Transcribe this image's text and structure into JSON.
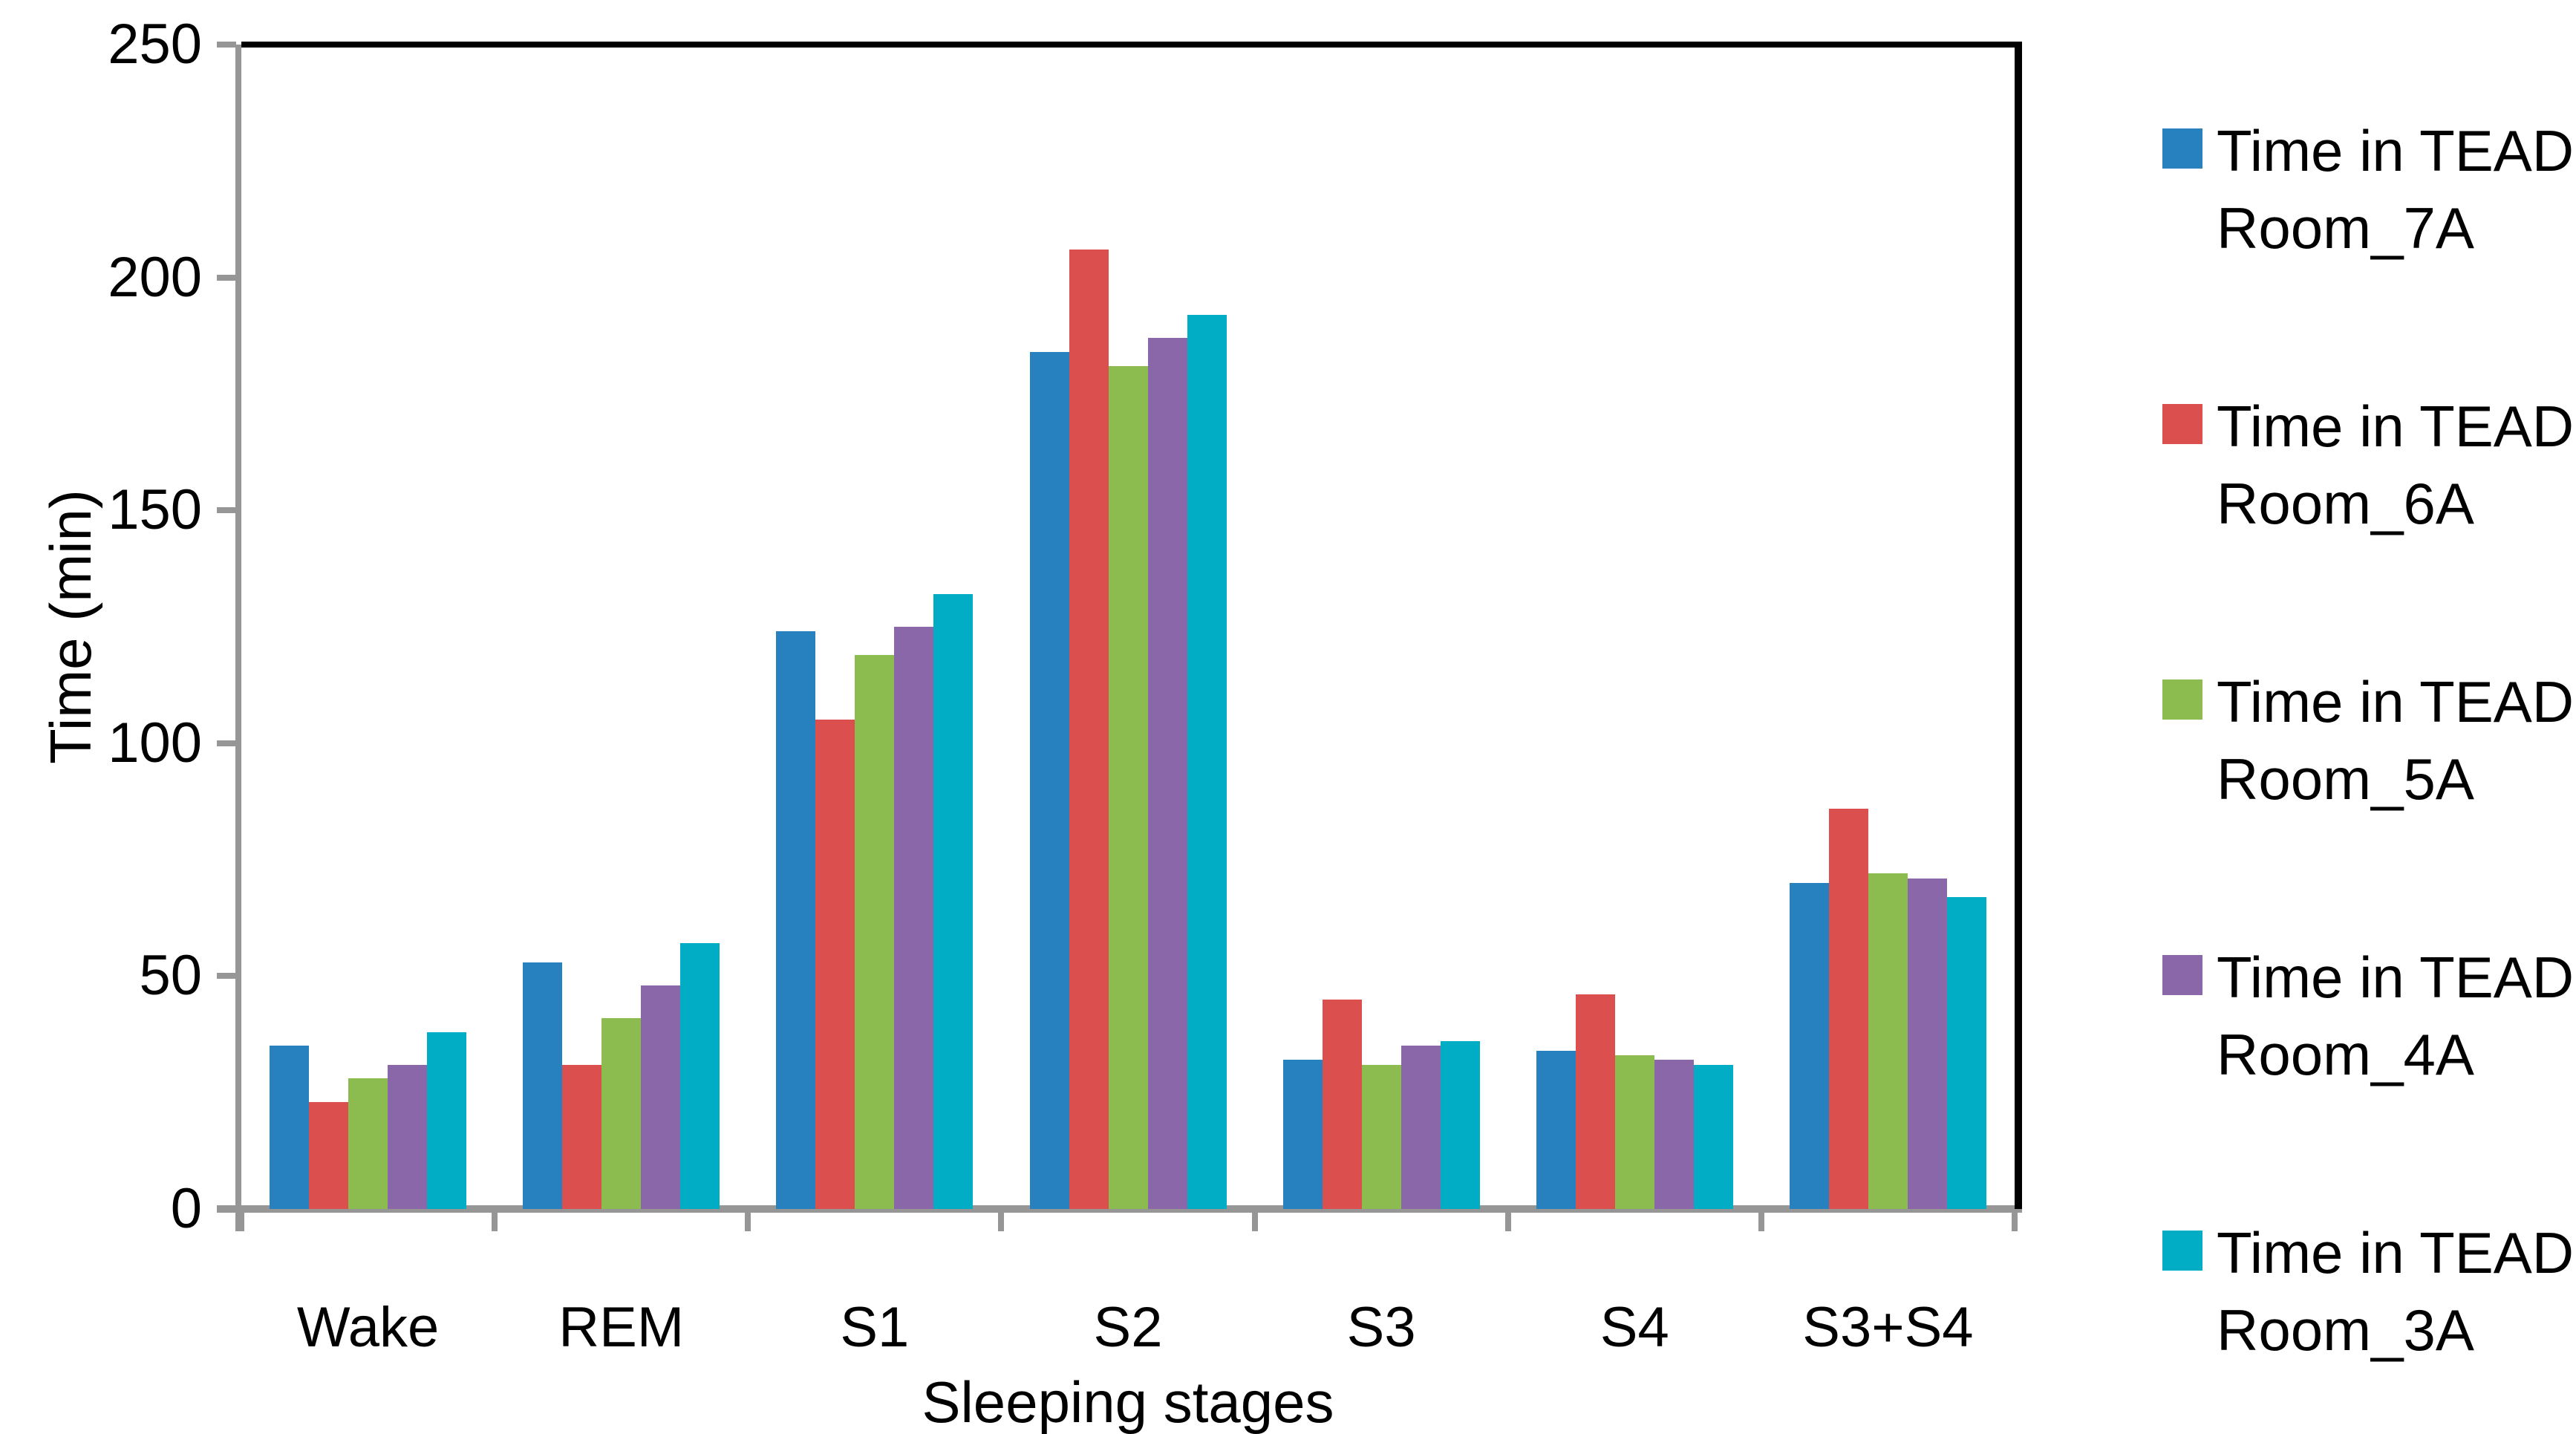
{
  "chart_data": {
    "type": "bar",
    "title": "",
    "xlabel": "Sleeping stages",
    "ylabel": "Time (min)",
    "ylim": [
      0,
      250
    ],
    "yticks": [
      0,
      50,
      100,
      150,
      200,
      250
    ],
    "categories": [
      "Wake",
      "REM",
      "S1",
      "S2",
      "S3",
      "S4",
      "S3+S4"
    ],
    "series": [
      {
        "name": "Time in TEAD Room_7A",
        "name_lines": [
          "Time in TEAD",
          "Room_7A"
        ],
        "color": "#2781BF",
        "values": [
          35,
          53,
          124,
          184,
          32,
          34,
          70
        ]
      },
      {
        "name": "Time in TEAD Room_6A",
        "name_lines": [
          "Time in TEAD",
          "Room_6A"
        ],
        "color": "#DB4F4F",
        "values": [
          23,
          31,
          105,
          206,
          45,
          46,
          86
        ]
      },
      {
        "name": "Time in TEAD Room_5A",
        "name_lines": [
          "Time in TEAD",
          "Room_5A"
        ],
        "color": "#8CBC4F",
        "values": [
          28,
          41,
          119,
          181,
          31,
          33,
          72
        ]
      },
      {
        "name": "Time in TEAD Room_4A",
        "name_lines": [
          "Time in TEAD",
          "Room_4A"
        ],
        "color": "#8967A8",
        "values": [
          31,
          48,
          125,
          187,
          35,
          32,
          71
        ]
      },
      {
        "name": "Time in TEAD Room_3A",
        "name_lines": [
          "Time in TEAD",
          "Room_3A"
        ],
        "color": "#00ADC5",
        "values": [
          38,
          57,
          132,
          192,
          36,
          31,
          67
        ]
      }
    ],
    "legend_position": "right",
    "grid": false,
    "axis_color": "#969696",
    "plot_border_color": "#000000",
    "background_color": "#FFFFFF"
  }
}
